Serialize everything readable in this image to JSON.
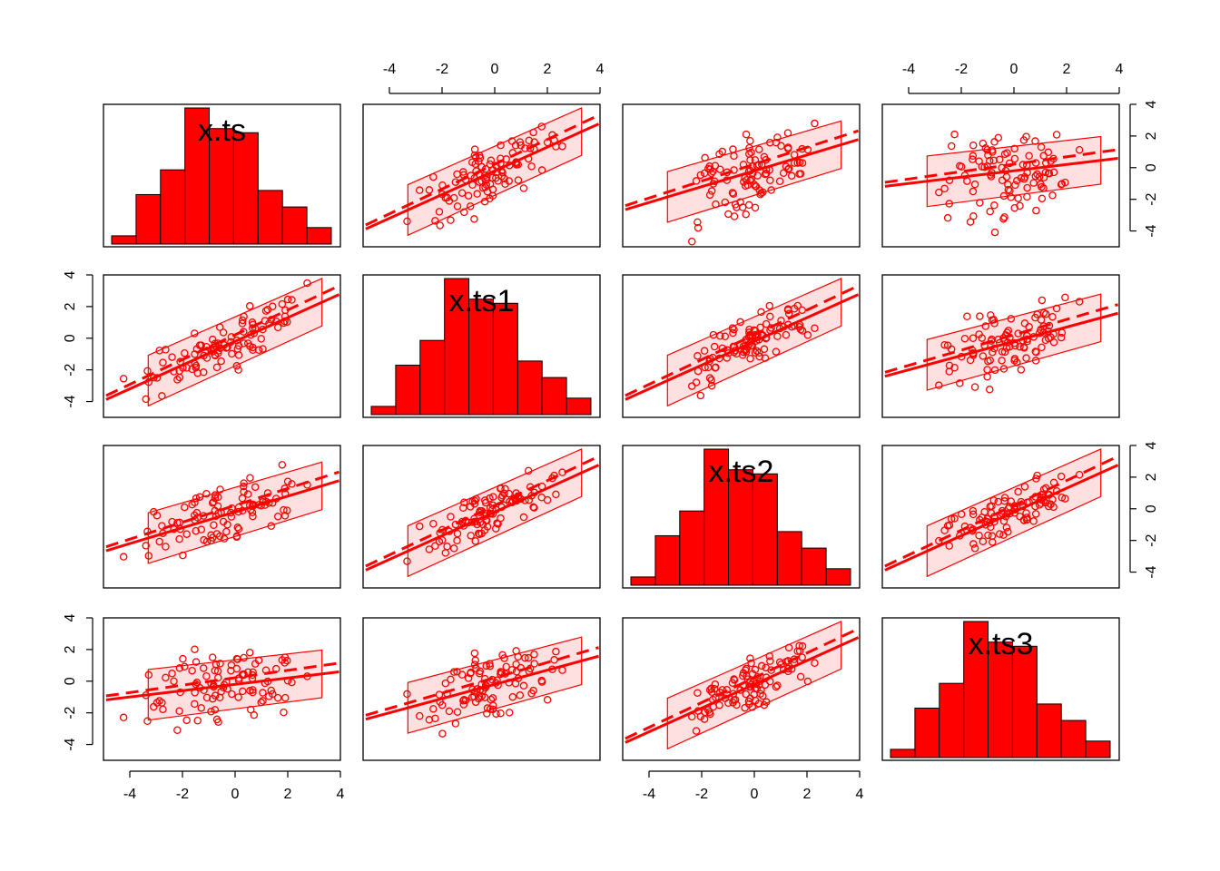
{
  "chart_data": {
    "type": "scatter-matrix",
    "variables": [
      "x.ts",
      "x.ts1",
      "x.ts2",
      "x.ts3"
    ],
    "axis_range": [
      -5,
      4
    ],
    "ticks": [
      -4,
      -2,
      0,
      2,
      4
    ],
    "colors": {
      "points": "#ff0000",
      "fit_line": "#ff0000",
      "band_fill": "#ffe0e0",
      "bars": "#ff0000"
    },
    "histogram": {
      "bin_edges": [
        -5,
        -4,
        -3,
        -2,
        -1,
        0,
        1,
        2,
        3,
        4
      ],
      "counts": [
        2,
        12,
        18,
        33,
        28,
        27,
        13,
        9,
        4
      ]
    },
    "diagonal_histograms_shown": true,
    "fit": {
      "regression_line": true,
      "smoother_dashed": true,
      "confidence_band": true
    },
    "axes": {
      "top_columns": [
        2,
        4
      ],
      "bottom_columns": [
        1,
        3
      ],
      "left_rows": [
        2,
        4
      ],
      "right_rows": [
        1,
        3
      ]
    }
  }
}
